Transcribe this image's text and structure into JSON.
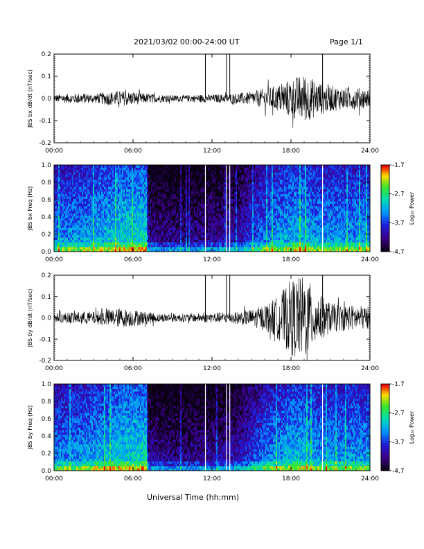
{
  "header": {
    "title": "2021/03/02  00:00-24:00 UT",
    "page": "Page 1/1"
  },
  "xlabel": "Universal Time (hh:mm)",
  "chart_data": [
    {
      "type": "line",
      "ylabel": "JBS bx dB/dt (nT/sec)",
      "xlim": [
        0,
        24
      ],
      "ylim": [
        -0.2,
        0.2
      ],
      "xticks": [
        "00:00",
        "06:00",
        "12:00",
        "18:00",
        "24:00"
      ],
      "yticks": [
        "0.2",
        "0.1",
        "0.0",
        "-0.1",
        "-0.2"
      ],
      "envelope": {
        "hours": [
          0,
          1,
          2,
          3,
          4,
          5,
          6,
          7,
          8,
          9,
          10,
          11,
          12,
          13,
          14,
          15,
          16,
          17,
          18,
          19,
          20,
          21,
          22,
          23,
          24
        ],
        "amplitude": [
          0.018,
          0.02,
          0.025,
          0.02,
          0.03,
          0.035,
          0.03,
          0.022,
          0.018,
          0.015,
          0.015,
          0.018,
          0.018,
          0.02,
          0.025,
          0.03,
          0.045,
          0.06,
          0.09,
          0.11,
          0.08,
          0.06,
          0.05,
          0.05,
          0.04
        ]
      },
      "spikes_hours": [
        11.5,
        13.1,
        13.35,
        20.4
      ]
    },
    {
      "type": "heatmap",
      "ylabel": "JBS bx Freq (Hz)",
      "colorbar_label": "Log₁₀ Power",
      "colorbar_ticks": [
        "-1.7",
        "-2.7",
        "-3.7",
        "-4.7"
      ],
      "xlim": [
        0,
        24
      ],
      "ylim": [
        0,
        1.0
      ],
      "xticks": [
        "00:00",
        "06:00",
        "12:00",
        "18:00",
        "24:00"
      ],
      "yticks": [
        "1.0",
        "0.8",
        "0.6",
        "0.4",
        "0.2",
        "0.0"
      ],
      "gaps_hours": [
        11.5,
        13.1,
        13.35,
        20.4
      ]
    },
    {
      "type": "line",
      "ylabel": "JBS by dB/dt (nT/sec)",
      "xlim": [
        0,
        24
      ],
      "ylim": [
        -0.2,
        0.2
      ],
      "xticks": [
        "00:00",
        "06:00",
        "12:00",
        "18:00",
        "24:00"
      ],
      "yticks": [
        "0.2",
        "0.1",
        "0.0",
        "-0.1",
        "-0.2"
      ],
      "envelope": {
        "hours": [
          0,
          1,
          2,
          3,
          4,
          5,
          6,
          7,
          8,
          9,
          10,
          11,
          12,
          13,
          14,
          15,
          16,
          17,
          18,
          19,
          20,
          21,
          22,
          23,
          24
        ],
        "amplitude": [
          0.02,
          0.025,
          0.03,
          0.03,
          0.04,
          0.045,
          0.04,
          0.03,
          0.02,
          0.02,
          0.02,
          0.02,
          0.025,
          0.025,
          0.03,
          0.04,
          0.06,
          0.1,
          0.18,
          0.2,
          0.12,
          0.07,
          0.06,
          0.06,
          0.05
        ]
      },
      "spikes_hours": [
        11.5,
        13.1,
        13.35,
        20.4
      ]
    },
    {
      "type": "heatmap",
      "ylabel": "JBS by Freq (Hz)",
      "colorbar_label": "Log₁₀ Power",
      "colorbar_ticks": [
        "-1.7",
        "-2.7",
        "-3.7",
        "-4.7"
      ],
      "xlim": [
        0,
        24
      ],
      "ylim": [
        0,
        1.0
      ],
      "xticks": [
        "00:00",
        "06:00",
        "12:00",
        "18:00",
        "24:00"
      ],
      "yticks": [
        "1.0",
        "0.8",
        "0.6",
        "0.4",
        "0.2",
        "0.0"
      ],
      "gaps_hours": [
        11.5,
        13.1,
        13.35,
        20.4
      ]
    }
  ]
}
